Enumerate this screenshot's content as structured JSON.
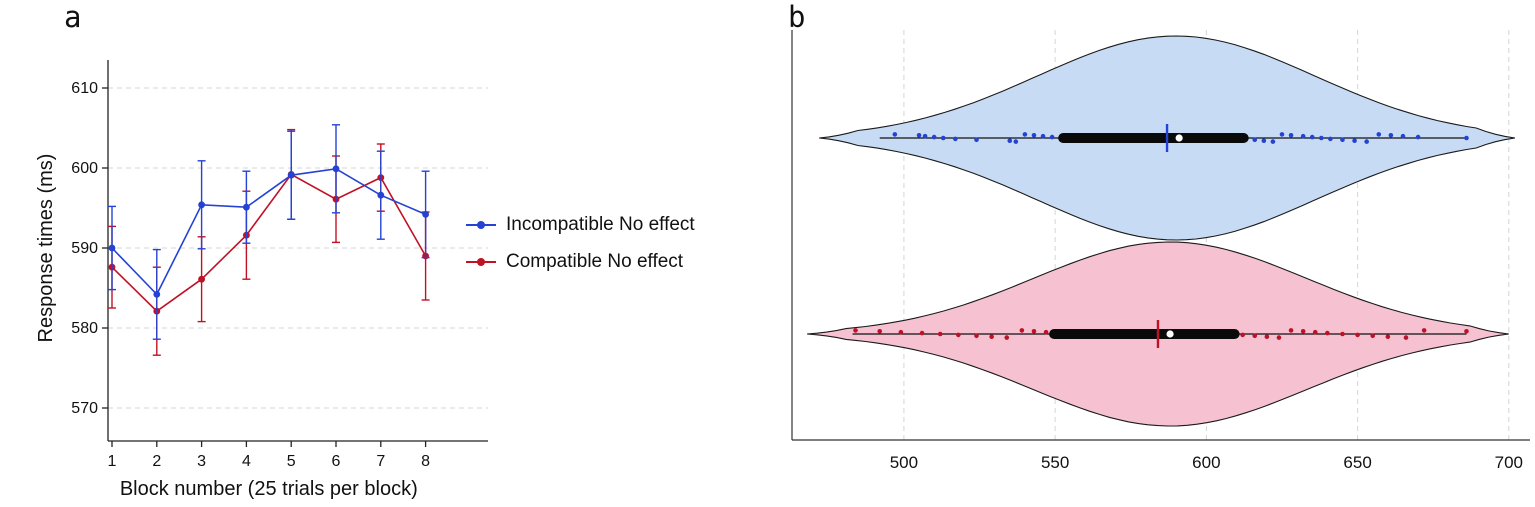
{
  "panels": {
    "a": {
      "label": "a"
    },
    "b": {
      "label": "b"
    }
  },
  "colors": {
    "incompatible_blue": "#2443d4",
    "compatible_red": "#c01226",
    "violin_blue_fill": "#c7dcf4",
    "violin_pink_fill": "#f6c2d2",
    "grid": "#d5d5d5",
    "axis": "#222222"
  },
  "chart_data": [
    {
      "panel": "a",
      "type": "line",
      "title": "",
      "xlabel": "Block number (25 trials per block)",
      "ylabel": "Response times (ms)",
      "x": [
        1,
        2,
        3,
        4,
        5,
        6,
        7,
        8
      ],
      "yticks": [
        570,
        580,
        590,
        600,
        610
      ],
      "ylim": [
        565,
        615
      ],
      "grid": "horizontal-dashed",
      "error_bars": true,
      "legend_position": "right-of-plot",
      "series": [
        {
          "name": "Incompatible No effect",
          "color": "#2443d4",
          "values": [
            590.0,
            584.2,
            595.4,
            595.1,
            599.1,
            599.9,
            596.6,
            594.2
          ],
          "err": [
            5.2,
            5.6,
            5.5,
            4.5,
            5.5,
            5.5,
            5.5,
            5.4
          ]
        },
        {
          "name": "Compatible No effect",
          "color": "#c01226",
          "values": [
            587.6,
            582.1,
            586.1,
            591.6,
            599.2,
            596.1,
            598.8,
            589.0
          ],
          "err": [
            5.1,
            5.5,
            5.3,
            5.5,
            5.6,
            5.4,
            4.2,
            5.5
          ]
        }
      ]
    },
    {
      "panel": "b",
      "type": "violin",
      "orientation": "horizontal",
      "xticks": [
        500,
        550,
        600,
        650,
        700
      ],
      "xlim": [
        463,
        707
      ],
      "grid": "vertical-dashed",
      "groups": [
        {
          "name": "Incompatible No effect",
          "fill": "#c7dcf4",
          "point_color": "#2443d4",
          "mean": 590,
          "sd": 46,
          "density_range": [
            472,
            702
          ],
          "whiskers": [
            492,
            686
          ],
          "box_q1": 551,
          "box_q3": 614,
          "median": 587,
          "mean_dot": 591,
          "points": [
            497,
            505,
            507,
            510,
            513,
            517,
            524,
            535,
            537,
            540,
            543,
            546,
            549,
            552,
            555,
            616,
            619,
            622,
            625,
            628,
            632,
            635,
            638,
            641,
            645,
            649,
            653,
            657,
            661,
            665,
            670,
            686
          ]
        },
        {
          "name": "Compatible No effect",
          "fill": "#f6c2d2",
          "point_color": "#c01226",
          "mean": 588,
          "sd": 45,
          "density_range": [
            468,
            700
          ],
          "whiskers": [
            483,
            686
          ],
          "box_q1": 548,
          "box_q3": 611,
          "median": 584,
          "mean_dot": 588,
          "points": [
            484,
            492,
            499,
            506,
            512,
            518,
            524,
            529,
            534,
            539,
            543,
            547,
            551,
            554,
            612,
            616,
            620,
            624,
            628,
            632,
            636,
            640,
            645,
            650,
            655,
            660,
            666,
            672,
            686
          ]
        }
      ]
    }
  ]
}
